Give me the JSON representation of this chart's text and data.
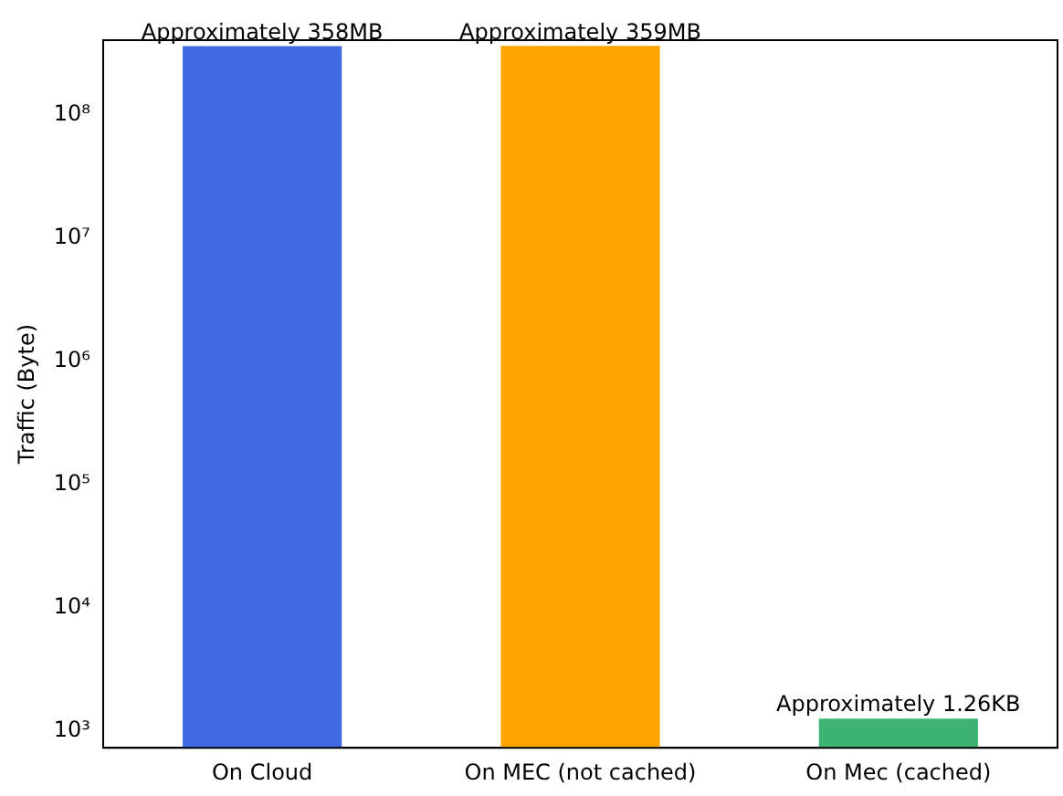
{
  "chart_data": {
    "type": "bar",
    "ylabel": "Traffic (Byte)",
    "log": true,
    "grid": false,
    "legend": false,
    "categories": [
      "On Cloud",
      "On MEC (not cached)",
      "On Mec (cached)"
    ],
    "values": [
      358000000,
      359000000,
      1260
    ],
    "colors": [
      "#4169e1",
      "#ffa500",
      "#3cb371"
    ],
    "value_labels": [
      "Approximately 358MB",
      "Approximately 359MB",
      "Approximately 1.26KB"
    ],
    "ylim": [
      730,
      400000000
    ],
    "yticks": [
      {
        "value": 1000,
        "label": "10³"
      },
      {
        "value": 10000,
        "label": "10⁴"
      },
      {
        "value": 100000,
        "label": "10⁵"
      },
      {
        "value": 1000000,
        "label": "10⁶"
      },
      {
        "value": 10000000,
        "label": "10⁷"
      },
      {
        "value": 100000000,
        "label": "10⁸"
      }
    ]
  }
}
